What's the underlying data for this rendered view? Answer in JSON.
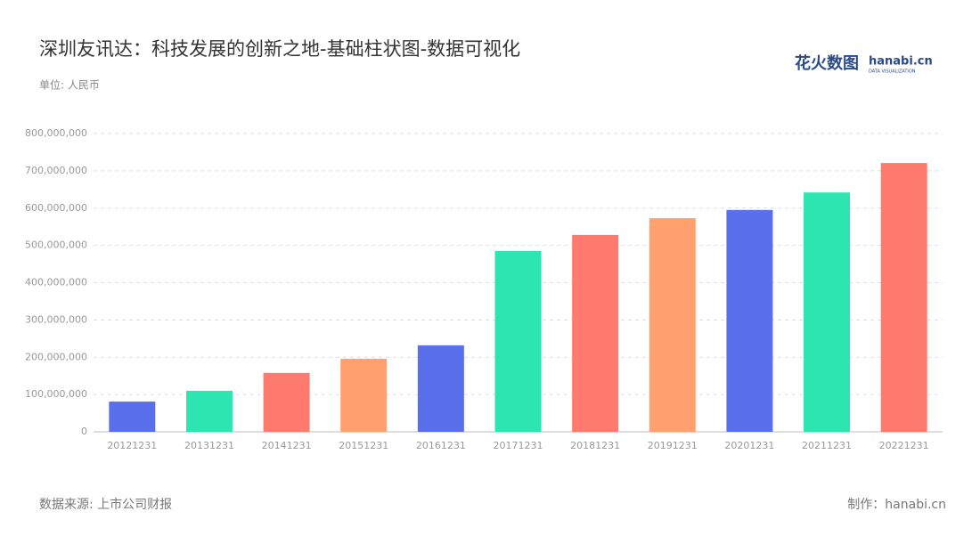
{
  "chart_data": {
    "type": "bar",
    "title": "深圳友讯达：科技发展的创新之地-基础柱状图-数据可视化",
    "subtitle": "单位: 人民币",
    "source": "数据来源: 上市公司财报",
    "credit": "制作：hanabi.cn",
    "logo": {
      "name": "花火数图",
      "site": "hanabi.cn",
      "tagline": "DATA VISUALIZATION"
    },
    "categories": [
      "20121231",
      "20131231",
      "20141231",
      "20151231",
      "20161231",
      "20171231",
      "20181231",
      "20191231",
      "20201231",
      "20211231",
      "20221231"
    ],
    "values": [
      81000000,
      110000000,
      158000000,
      196000000,
      232000000,
      485000000,
      528000000,
      573000000,
      595000000,
      642000000,
      721000000
    ],
    "colors": [
      "#5a6fec",
      "#2de5b1",
      "#ff7a6e",
      "#ffa06e",
      "#5a6fec",
      "#2de5b1",
      "#ff7a6e",
      "#ffa06e",
      "#5a6fec",
      "#2de5b1",
      "#ff7a6e"
    ],
    "ylim": [
      0,
      800000000
    ],
    "yticks": [
      0,
      {
        "value": 100000000,
        "label": "100,000,000"
      },
      {
        "value": 200000000,
        "label": "200,000,000"
      },
      {
        "value": 300000000,
        "label": "300,000,000"
      },
      {
        "value": 400000000,
        "label": "400,000,000"
      },
      {
        "value": 500000000,
        "label": "500,000,000"
      },
      {
        "value": 600000000,
        "label": "600,000,000"
      },
      {
        "value": 700000000,
        "label": "700,000,000"
      },
      {
        "value": 800000000,
        "label": "800,000,000"
      }
    ],
    "grid": true
  }
}
